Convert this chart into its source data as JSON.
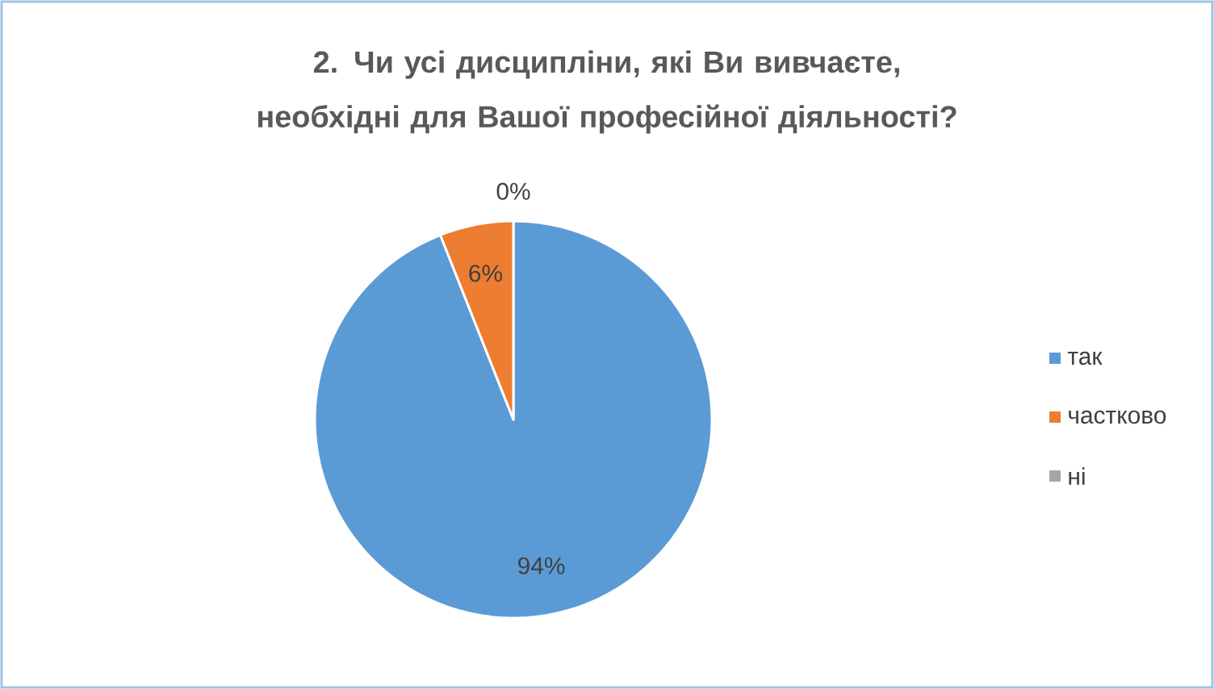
{
  "chart_data": {
    "type": "pie",
    "title": "2. Чи усі дисципліни, які Ви вивчаєте, необхідні для Вашої професійної діяльності?",
    "categories": [
      "так",
      "частково",
      "ні"
    ],
    "values": [
      94,
      6,
      0
    ],
    "colors": [
      "#5b9bd5",
      "#ed7d31",
      "#a5a5a5"
    ],
    "value_labels": [
      "94%",
      "6%",
      "0%"
    ],
    "legend": "right"
  }
}
